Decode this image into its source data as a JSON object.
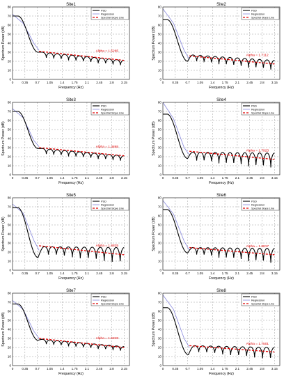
{
  "common": {
    "xlabel": "Frequency (Hz)",
    "ylabel": "Spectrum Power (dB)",
    "x_ticks": [
      0,
      0.35,
      0.7,
      1.05,
      1.4,
      1.75,
      2.1,
      2.45,
      2.8,
      3.15
    ],
    "x_tick_labels": [
      "0",
      "0.35",
      "0.7",
      "1.05",
      "1.4",
      "1.75",
      "2.1",
      "2.45",
      "2.8",
      "3.15"
    ],
    "y_ticks": [
      0,
      10,
      20,
      30,
      40,
      50,
      60,
      70,
      80
    ],
    "y_tick_labels": [
      "0",
      "10",
      "20",
      "30",
      "40",
      "50",
      "60",
      "70",
      "80"
    ],
    "xlim": [
      0,
      3.3
    ],
    "ylim": [
      0,
      80
    ],
    "legend": [
      "PSD",
      "Regression",
      "Spectral Slope Line"
    ],
    "colors": {
      "psd": "#000000",
      "regression": "#8888dd",
      "slope": "#e00000",
      "grid": "#999999",
      "alpha_text": "#e00000"
    }
  },
  "chart_data": [
    {
      "type": "line",
      "title": "Site1",
      "xlabel": "Frequency (Hz)",
      "ylabel": "Spectrum Power (dB)",
      "xlim": [
        0,
        3.3
      ],
      "ylim": [
        0,
        80
      ],
      "grid": true,
      "legend_position": "top-right",
      "alpha_label": "Alpha = 1.5265",
      "psd": {
        "start": 70,
        "plateau": [
          0.0,
          0.15
        ],
        "knee": [
          0.72,
          30
        ],
        "ripple_start": 0.85,
        "n_ripples": 11,
        "peak_start": 30,
        "peak_end": 21,
        "trough_start": 23,
        "trough_end": 14
      },
      "regression": [
        [
          0,
          72
        ],
        [
          0.3,
          62
        ],
        [
          0.6,
          40
        ],
        [
          0.75,
          32
        ]
      ],
      "slope_line": [
        [
          0.75,
          31
        ],
        [
          3.15,
          21
        ]
      ]
    },
    {
      "type": "line",
      "title": "Site2",
      "xlabel": "Frequency (Hz)",
      "ylabel": "Spectrum Power (dB)",
      "xlim": [
        0,
        3.3
      ],
      "ylim": [
        0,
        80
      ],
      "grid": true,
      "legend_position": "top-right",
      "alpha_label": "Alpha = 1.7112",
      "psd": {
        "start": 66,
        "plateau": [
          0.0,
          0.12
        ],
        "knee": [
          0.7,
          20
        ],
        "ripple_start": 0.85,
        "n_ripples": 11,
        "peak_start": 27,
        "peak_end": 21,
        "trough_start": 19,
        "trough_end": 8
      },
      "regression": [
        [
          0,
          78
        ],
        [
          0.3,
          62
        ],
        [
          0.6,
          32
        ],
        [
          0.75,
          22
        ]
      ],
      "slope_line": [
        [
          0.75,
          26
        ],
        [
          3.15,
          17
        ]
      ]
    },
    {
      "type": "line",
      "title": "Site3",
      "xlabel": "Frequency (Hz)",
      "ylabel": "Spectrum Power (dB)",
      "xlim": [
        0,
        3.3
      ],
      "ylim": [
        0,
        80
      ],
      "grid": true,
      "legend_position": "top-right",
      "alpha_label": "Alpha = 1.4865",
      "psd": {
        "start": 70,
        "plateau": [
          0.0,
          0.15
        ],
        "knee": [
          0.72,
          29
        ],
        "ripple_start": 0.85,
        "n_ripples": 11,
        "peak_start": 29,
        "peak_end": 21,
        "trough_start": 22,
        "trough_end": 14
      },
      "regression": [
        [
          0,
          73
        ],
        [
          0.3,
          63
        ],
        [
          0.6,
          38
        ],
        [
          0.75,
          31
        ]
      ],
      "slope_line": [
        [
          0.75,
          30
        ],
        [
          3.15,
          21
        ]
      ]
    },
    {
      "type": "line",
      "title": "Site4",
      "xlabel": "Frequency (Hz)",
      "ylabel": "Spectrum Power (dB)",
      "xlim": [
        0,
        3.3
      ],
      "ylim": [
        0,
        80
      ],
      "grid": true,
      "legend_position": "top-right",
      "alpha_label": "Alpha = 1.7923",
      "psd": {
        "start": 67,
        "plateau": [
          0.0,
          0.12
        ],
        "knee": [
          0.7,
          18
        ],
        "ripple_start": 0.85,
        "n_ripples": 11,
        "peak_start": 25,
        "peak_end": 24,
        "trough_start": 14,
        "trough_end": 4
      },
      "regression": [
        [
          0,
          80
        ],
        [
          0.3,
          62
        ],
        [
          0.6,
          30
        ],
        [
          0.75,
          22
        ]
      ],
      "slope_line": [
        [
          0.75,
          26
        ],
        [
          3.15,
          17
        ]
      ]
    },
    {
      "type": "line",
      "title": "Site5",
      "xlabel": "Frequency (Hz)",
      "ylabel": "Spectrum Power (dB)",
      "xlim": [
        0,
        3.3
      ],
      "ylim": [
        0,
        80
      ],
      "grid": true,
      "legend_position": "top-right",
      "alpha_label": "Alpha = 1.6825",
      "psd": {
        "start": 69,
        "plateau": [
          0.0,
          0.15
        ],
        "knee": [
          0.72,
          14
        ],
        "ripple_start": 0.9,
        "n_ripples": 10,
        "peak_start": 26,
        "peak_end": 25,
        "trough_start": 16,
        "trough_end": 4
      },
      "regression": [
        [
          0,
          73
        ],
        [
          0.3,
          63
        ],
        [
          0.6,
          33
        ],
        [
          0.75,
          22
        ]
      ],
      "slope_line": [
        [
          0.75,
          27
        ],
        [
          3.15,
          17
        ]
      ]
    },
    {
      "type": "line",
      "title": "Site6",
      "xlabel": "Frequency (Hz)",
      "ylabel": "Spectrum Power (dB)",
      "xlim": [
        0,
        3.3
      ],
      "ylim": [
        0,
        80
      ],
      "grid": true,
      "legend_position": "top-right",
      "alpha_label": "Alpha = 1.6817",
      "psd": {
        "start": 67,
        "plateau": [
          0.0,
          0.12
        ],
        "knee": [
          0.7,
          19
        ],
        "ripple_start": 0.85,
        "n_ripples": 11,
        "peak_start": 25,
        "peak_end": 24,
        "trough_start": 16,
        "trough_end": 4
      },
      "regression": [
        [
          0,
          77
        ],
        [
          0.3,
          62
        ],
        [
          0.6,
          32
        ],
        [
          0.75,
          22
        ]
      ],
      "slope_line": [
        [
          0.75,
          25
        ],
        [
          3.15,
          17
        ]
      ]
    },
    {
      "type": "line",
      "title": "Site7",
      "xlabel": "Frequency (Hz)",
      "ylabel": "Spectrum Power (dB)",
      "xlim": [
        0,
        3.3
      ],
      "ylim": [
        0,
        80
      ],
      "grid": true,
      "legend_position": "top-right",
      "alpha_label": "Alpha = 1.5349",
      "psd": {
        "start": 68,
        "plateau": [
          0.0,
          0.15
        ],
        "knee": [
          0.72,
          28
        ],
        "ripple_start": 0.85,
        "n_ripples": 11,
        "peak_start": 29,
        "peak_end": 21,
        "trough_start": 23,
        "trough_end": 15
      },
      "regression": [
        [
          0,
          72
        ],
        [
          0.3,
          62
        ],
        [
          0.6,
          38
        ],
        [
          0.75,
          30
        ]
      ],
      "slope_line": [
        [
          0.75,
          30
        ],
        [
          3.15,
          20
        ]
      ]
    },
    {
      "type": "line",
      "title": "Site8",
      "xlabel": "Frequency (Hz)",
      "ylabel": "Spectrum Power (dB)",
      "xlim": [
        0,
        3.3
      ],
      "ylim": [
        0,
        80
      ],
      "grid": true,
      "legend_position": "top-right",
      "alpha_label": "Alpha = 1.7501",
      "psd": {
        "start": 64,
        "plateau": [
          0.0,
          0.12
        ],
        "knee": [
          0.72,
          12
        ],
        "ripple_start": 0.9,
        "n_ripples": 10,
        "peak_start": 22,
        "peak_end": 20,
        "trough_start": 14,
        "trough_end": 4
      },
      "regression": [
        [
          0,
          78
        ],
        [
          0.3,
          62
        ],
        [
          0.6,
          30
        ],
        [
          0.75,
          20
        ]
      ],
      "slope_line": [
        [
          0.75,
          22
        ],
        [
          3.15,
          15
        ]
      ]
    }
  ]
}
